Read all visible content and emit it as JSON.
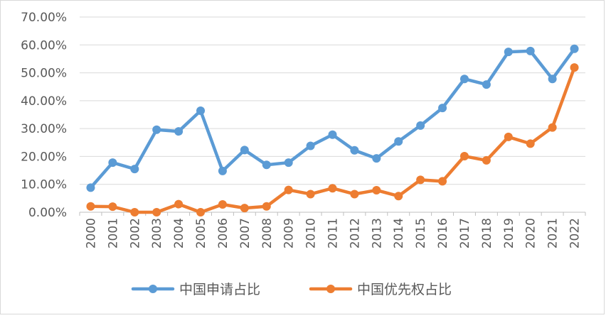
{
  "chart_data": {
    "type": "line",
    "title": "",
    "xlabel": "",
    "ylabel": "",
    "categories": [
      "2000",
      "2001",
      "2002",
      "2003",
      "2004",
      "2005",
      "2006",
      "2007",
      "2008",
      "2009",
      "2010",
      "2011",
      "2012",
      "2013",
      "2014",
      "2015",
      "2016",
      "2017",
      "2018",
      "2019",
      "2020",
      "2021",
      "2022"
    ],
    "ylim": [
      0,
      0.7
    ],
    "yticks": [
      "0.00%",
      "10.00%",
      "20.00%",
      "30.00%",
      "40.00%",
      "50.00%",
      "60.00%",
      "70.00%"
    ],
    "grid": true,
    "legend_position": "bottom",
    "series": [
      {
        "name": "中国申请占比",
        "color": "#5B9BD5",
        "values": [
          0.088,
          0.178,
          0.155,
          0.296,
          0.29,
          0.364,
          0.148,
          0.223,
          0.17,
          0.178,
          0.238,
          0.278,
          0.222,
          0.193,
          0.254,
          0.311,
          0.374,
          0.478,
          0.458,
          0.575,
          0.578,
          0.478,
          0.586
        ]
      },
      {
        "name": "中国优先权占比",
        "color": "#ED7D31",
        "values": [
          0.021,
          0.02,
          0.0,
          0.0,
          0.029,
          0.0,
          0.028,
          0.015,
          0.021,
          0.08,
          0.065,
          0.086,
          0.065,
          0.079,
          0.058,
          0.116,
          0.111,
          0.201,
          0.186,
          0.27,
          0.246,
          0.304,
          0.519
        ]
      }
    ]
  }
}
